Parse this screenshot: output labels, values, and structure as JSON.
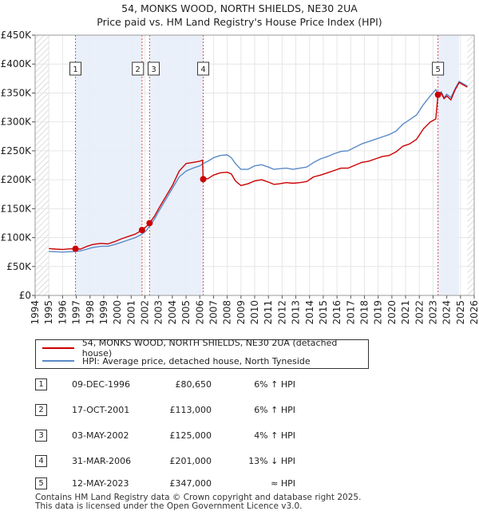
{
  "chart_data": {
    "type": "line",
    "title": "54, MONKS WOOD, NORTH SHIELDS, NE30 2UA",
    "subtitle": "Price paid vs. HM Land Registry's House Price Index (HPI)",
    "xlim": [
      1994,
      2026
    ],
    "ylim": [
      0,
      450000
    ],
    "x_ticks": [
      "1994",
      "1995",
      "1996",
      "1997",
      "1998",
      "1999",
      "2000",
      "2001",
      "2002",
      "2003",
      "2004",
      "2005",
      "2006",
      "2007",
      "2008",
      "2009",
      "2010",
      "2011",
      "2012",
      "2013",
      "2014",
      "2015",
      "2016",
      "2017",
      "2018",
      "2019",
      "2020",
      "2021",
      "2022",
      "2023",
      "2024",
      "2025",
      "2026"
    ],
    "y_ticks": [
      {
        "value": 0,
        "label": "£0"
      },
      {
        "value": 50000,
        "label": "£50K"
      },
      {
        "value": 100000,
        "label": "£100K"
      },
      {
        "value": 150000,
        "label": "£150K"
      },
      {
        "value": 200000,
        "label": "£200K"
      },
      {
        "value": 250000,
        "label": "£250K"
      },
      {
        "value": 300000,
        "label": "£300K"
      },
      {
        "value": 350000,
        "label": "£350K"
      },
      {
        "value": 400000,
        "label": "£400K"
      },
      {
        "value": 450000,
        "label": "£450K"
      }
    ],
    "data_range": [
      1995.0,
      2025.5
    ],
    "grid": true,
    "colors": {
      "property": "#cc0000",
      "hpi": "#5b8ac8",
      "band": "#e8eefa",
      "hatch": "#c8c8c8",
      "vline": "#e05050"
    },
    "series": [
      {
        "name": "54, MONKS WOOD, NORTH SHIELDS, NE30 2UA (detached house)",
        "color": "#cc0000",
        "points": [
          [
            1995.0,
            81000
          ],
          [
            1995.5,
            80000
          ],
          [
            1996.0,
            79500
          ],
          [
            1996.5,
            80500
          ],
          [
            1996.94,
            80650
          ],
          [
            1997.3,
            80000
          ],
          [
            1997.8,
            85000
          ],
          [
            1998.2,
            88000
          ],
          [
            1998.8,
            90000
          ],
          [
            1999.3,
            89000
          ],
          [
            1999.8,
            93000
          ],
          [
            2000.3,
            98000
          ],
          [
            2000.8,
            102000
          ],
          [
            2001.3,
            106000
          ],
          [
            2001.79,
            113000
          ],
          [
            2002.1,
            119000
          ],
          [
            2002.34,
            125000
          ],
          [
            2002.7,
            137000
          ],
          [
            2003.0,
            150000
          ],
          [
            2003.5,
            170000
          ],
          [
            2004.0,
            190000
          ],
          [
            2004.5,
            215000
          ],
          [
            2005.0,
            228000
          ],
          [
            2005.5,
            230000
          ],
          [
            2006.0,
            232000
          ],
          [
            2006.2,
            234000
          ],
          [
            2006.25,
            201000
          ],
          [
            2006.6,
            202000
          ],
          [
            2007.0,
            208000
          ],
          [
            2007.5,
            212000
          ],
          [
            2008.0,
            213000
          ],
          [
            2008.3,
            210000
          ],
          [
            2008.6,
            198000
          ],
          [
            2009.0,
            190000
          ],
          [
            2009.5,
            193000
          ],
          [
            2010.0,
            198000
          ],
          [
            2010.5,
            200000
          ],
          [
            2011.0,
            196000
          ],
          [
            2011.4,
            192000
          ],
          [
            2011.8,
            193000
          ],
          [
            2012.3,
            195000
          ],
          [
            2012.8,
            194000
          ],
          [
            2013.3,
            195000
          ],
          [
            2013.8,
            197000
          ],
          [
            2014.3,
            205000
          ],
          [
            2014.8,
            208000
          ],
          [
            2015.3,
            212000
          ],
          [
            2015.8,
            216000
          ],
          [
            2016.3,
            220000
          ],
          [
            2016.8,
            220000
          ],
          [
            2017.3,
            225000
          ],
          [
            2017.8,
            230000
          ],
          [
            2018.3,
            232000
          ],
          [
            2018.8,
            236000
          ],
          [
            2019.3,
            240000
          ],
          [
            2019.8,
            242000
          ],
          [
            2020.3,
            248000
          ],
          [
            2020.8,
            258000
          ],
          [
            2021.3,
            262000
          ],
          [
            2021.8,
            270000
          ],
          [
            2022.3,
            288000
          ],
          [
            2022.8,
            300000
          ],
          [
            2023.2,
            305000
          ],
          [
            2023.36,
            347000
          ],
          [
            2023.6,
            350000
          ],
          [
            2023.8,
            340000
          ],
          [
            2024.0,
            345000
          ],
          [
            2024.3,
            338000
          ],
          [
            2024.6,
            355000
          ],
          [
            2024.9,
            368000
          ],
          [
            2025.2,
            364000
          ],
          [
            2025.5,
            360000
          ]
        ]
      },
      {
        "name": "HPI: Average price, detached house, North Tyneside",
        "color": "#5b8ac8",
        "points": [
          [
            1995.0,
            76000
          ],
          [
            1995.5,
            75500
          ],
          [
            1996.0,
            75000
          ],
          [
            1996.5,
            75500
          ],
          [
            1996.94,
            76000
          ],
          [
            1997.3,
            77000
          ],
          [
            1997.8,
            80000
          ],
          [
            1998.2,
            83000
          ],
          [
            1998.8,
            85000
          ],
          [
            1999.3,
            85000
          ],
          [
            1999.8,
            88000
          ],
          [
            2000.3,
            92000
          ],
          [
            2000.8,
            96000
          ],
          [
            2001.3,
            100000
          ],
          [
            2001.79,
            106000
          ],
          [
            2002.1,
            112000
          ],
          [
            2002.34,
            120000
          ],
          [
            2002.7,
            132000
          ],
          [
            2003.0,
            145000
          ],
          [
            2003.5,
            165000
          ],
          [
            2004.0,
            185000
          ],
          [
            2004.5,
            205000
          ],
          [
            2005.0,
            215000
          ],
          [
            2005.5,
            220000
          ],
          [
            2006.0,
            224000
          ],
          [
            2006.25,
            228000
          ],
          [
            2006.6,
            232000
          ],
          [
            2007.0,
            238000
          ],
          [
            2007.5,
            242000
          ],
          [
            2008.0,
            243000
          ],
          [
            2008.3,
            238000
          ],
          [
            2008.6,
            228000
          ],
          [
            2009.0,
            218000
          ],
          [
            2009.5,
            218000
          ],
          [
            2010.0,
            224000
          ],
          [
            2010.5,
            226000
          ],
          [
            2011.0,
            222000
          ],
          [
            2011.4,
            218000
          ],
          [
            2011.8,
            219000
          ],
          [
            2012.3,
            220000
          ],
          [
            2012.8,
            218000
          ],
          [
            2013.3,
            220000
          ],
          [
            2013.8,
            222000
          ],
          [
            2014.3,
            230000
          ],
          [
            2014.8,
            236000
          ],
          [
            2015.3,
            240000
          ],
          [
            2015.8,
            245000
          ],
          [
            2016.3,
            249000
          ],
          [
            2016.8,
            250000
          ],
          [
            2017.3,
            256000
          ],
          [
            2017.8,
            262000
          ],
          [
            2018.3,
            266000
          ],
          [
            2018.8,
            270000
          ],
          [
            2019.3,
            274000
          ],
          [
            2019.8,
            278000
          ],
          [
            2020.3,
            284000
          ],
          [
            2020.8,
            296000
          ],
          [
            2021.3,
            304000
          ],
          [
            2021.8,
            312000
          ],
          [
            2022.3,
            330000
          ],
          [
            2022.8,
            345000
          ],
          [
            2023.2,
            356000
          ],
          [
            2023.36,
            348000
          ],
          [
            2023.6,
            352000
          ],
          [
            2023.8,
            342000
          ],
          [
            2024.0,
            348000
          ],
          [
            2024.3,
            342000
          ],
          [
            2024.6,
            357000
          ],
          [
            2024.9,
            370000
          ],
          [
            2025.2,
            366000
          ],
          [
            2025.5,
            362000
          ]
        ]
      }
    ],
    "sales": [
      {
        "n": "1",
        "x": 1996.94,
        "value": 80650
      },
      {
        "n": "2",
        "x": 2001.79,
        "value": 113000
      },
      {
        "n": "3",
        "x": 2002.34,
        "value": 125000
      },
      {
        "n": "4",
        "x": 2006.25,
        "value": 201000
      },
      {
        "n": "5",
        "x": 2023.36,
        "value": 347000
      }
    ],
    "shaded_bands": [
      [
        1996.94,
        2001.79
      ],
      [
        2002.34,
        2006.25
      ],
      [
        2023.36,
        2024.9
      ]
    ],
    "hatched_ranges": [
      [
        1994,
        1995
      ],
      [
        2025.5,
        2026
      ]
    ],
    "label_markers": [
      {
        "text": "1",
        "x": 1996.94
      },
      {
        "text": "2",
        "x": 2001.79,
        "offset": -0.3
      },
      {
        "text": "3",
        "x": 2002.34,
        "offset": 0.3
      },
      {
        "text": "4",
        "x": 2006.25
      },
      {
        "text": "5",
        "x": 2023.36
      }
    ]
  },
  "legend": {
    "property_label": "54, MONKS WOOD, NORTH SHIELDS, NE30 2UA (detached house)",
    "hpi_label": "HPI: Average price, detached house, North Tyneside"
  },
  "sales_table": [
    {
      "num": "1",
      "date": "09-DEC-1996",
      "price": "£80,650",
      "hpi": "6% ↑ HPI"
    },
    {
      "num": "2",
      "date": "17-OCT-2001",
      "price": "£113,000",
      "hpi": "6% ↑ HPI"
    },
    {
      "num": "3",
      "date": "03-MAY-2002",
      "price": "£125,000",
      "hpi": "4% ↑ HPI"
    },
    {
      "num": "4",
      "date": "31-MAR-2006",
      "price": "£201,000",
      "hpi": "13% ↓ HPI"
    },
    {
      "num": "5",
      "date": "12-MAY-2023",
      "price": "£347,000",
      "hpi": "≈ HPI"
    }
  ],
  "footer": {
    "line1": "Contains HM Land Registry data © Crown copyright and database right 2025.",
    "line2": "This data is licensed under the Open Government Licence v3.0."
  }
}
